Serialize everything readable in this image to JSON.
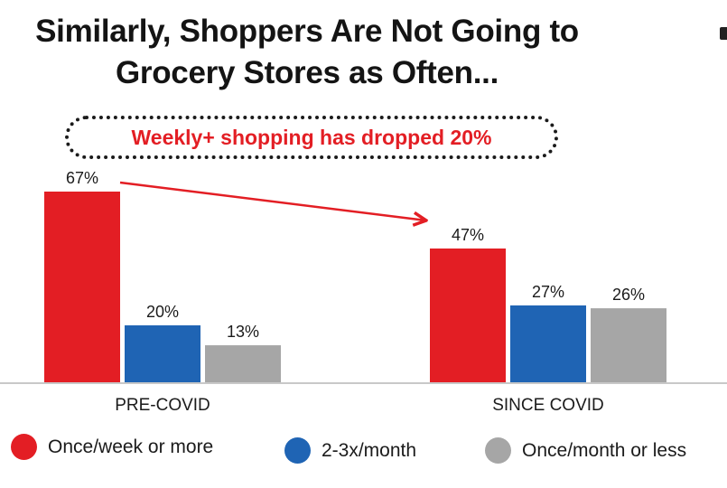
{
  "title": "Similarly, Shoppers Are Not Going to Grocery Stores as Often...",
  "callout": "Weekly+ shopping has dropped 20%",
  "colors": {
    "series1": "#e31e24",
    "series2": "#1f64b4",
    "series3": "#a6a6a6",
    "arrow": "#e31e24",
    "axis": "#c8c8c8"
  },
  "chart_data": {
    "type": "bar",
    "title": "Similarly, Shoppers Are Not Going to Grocery Stores as Often...",
    "categories": [
      "PRE-COVID",
      "SINCE COVID"
    ],
    "series": [
      {
        "name": "Once/week or more",
        "values": [
          67,
          47
        ],
        "labels": [
          "67%",
          "47%"
        ]
      },
      {
        "name": "2-3x/month",
        "values": [
          20,
          27
        ],
        "labels": [
          "20%",
          "27%"
        ]
      },
      {
        "name": "Once/month or less",
        "values": [
          13,
          26
        ],
        "labels": [
          "13%",
          "26%"
        ]
      }
    ],
    "ylim": [
      0,
      67
    ],
    "xlabel": "",
    "ylabel": "",
    "grid": false,
    "legend_position": "bottom",
    "annotation": "Weekly+ shopping has dropped 20%"
  }
}
